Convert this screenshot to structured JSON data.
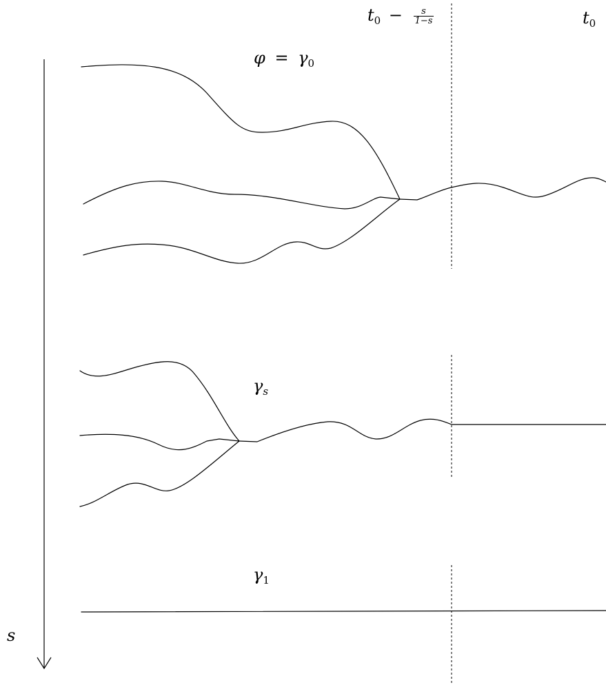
{
  "labels": {
    "top_left_time": {
      "base": "t",
      "sub": "0",
      "minus": "−",
      "frac_num": "s",
      "frac_den": "1−s"
    },
    "top_right_time": {
      "base": "t",
      "sub": "0"
    },
    "phi_eq_gamma0": {
      "lhs": "φ",
      "eq": "=",
      "rhs": "γ",
      "sub": "0"
    },
    "gamma_s": {
      "base": "γ",
      "sub": "s"
    },
    "gamma_1": {
      "base": "γ",
      "sub": "1"
    },
    "s_axis": "s"
  },
  "panels": [
    {
      "name": "gamma-0-panel",
      "branches": 3,
      "merge_then_wiggle": true
    },
    {
      "name": "gamma-s-panel",
      "branches": 3,
      "merge_then_wiggle": true,
      "flat_after_cutoff": true
    },
    {
      "name": "gamma-1-panel",
      "branches": 1,
      "flat": true
    }
  ],
  "colors": {
    "stroke": "#000000",
    "background": "#ffffff"
  }
}
